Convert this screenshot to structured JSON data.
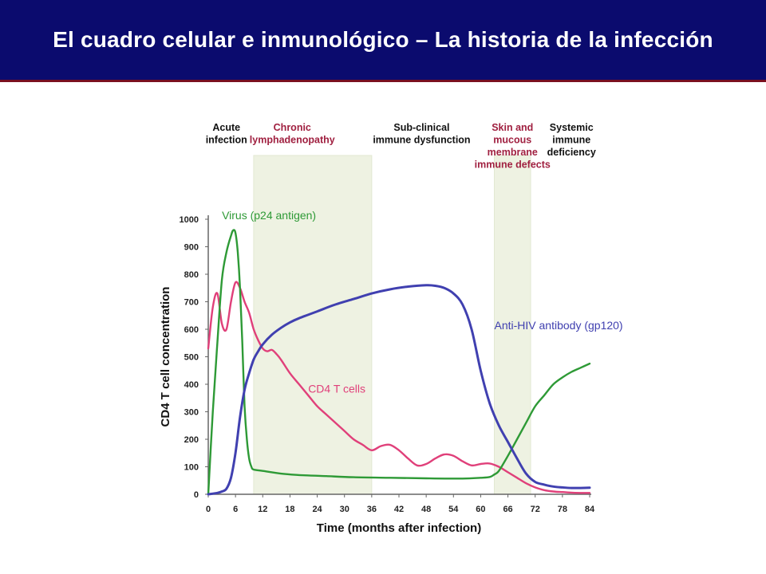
{
  "title": "El cuadro celular e inmunológico – La historia de la infección",
  "chart_data": {
    "type": "line",
    "xlabel": "Time (months after infection)",
    "ylabel": "CD4 T cell concentration",
    "xlim": [
      0,
      84
    ],
    "ylim": [
      0,
      1000
    ],
    "xticks": [
      0,
      6,
      12,
      18,
      24,
      30,
      36,
      42,
      48,
      54,
      60,
      66,
      72,
      78,
      84
    ],
    "yticks": [
      0,
      100,
      200,
      300,
      400,
      500,
      600,
      700,
      800,
      900,
      1000
    ],
    "grid": false,
    "phases": [
      {
        "lines": [
          "Acute",
          "infection"
        ],
        "x": 4,
        "color": "#111111",
        "shaded": false
      },
      {
        "lines": [
          "Chronic",
          "lymphadenopathy"
        ],
        "x": 18.5,
        "color": "#a02040",
        "shaded": true,
        "range": [
          10,
          36
        ]
      },
      {
        "lines": [
          "Sub-clinical",
          "immune dysfunction"
        ],
        "x": 47,
        "color": "#111111",
        "shaded": false
      },
      {
        "lines": [
          "Skin and",
          "mucous",
          "membrane",
          "immune defects"
        ],
        "x": 67,
        "color": "#a02040",
        "shaded": true,
        "range": [
          63,
          71
        ]
      },
      {
        "lines": [
          "Systemic",
          "immune",
          "deficiency"
        ],
        "x": 80,
        "color": "#111111",
        "shaded": false
      }
    ],
    "series": [
      {
        "name": "Virus (p24 antigen)",
        "color": "#2e9a36",
        "label_at": [
          3,
          1000
        ],
        "x": [
          0,
          1,
          2,
          3,
          4,
          5,
          5.5,
          6,
          6.5,
          7,
          7.5,
          8,
          8.5,
          9,
          9.5,
          10,
          12,
          16,
          20,
          26,
          32,
          40,
          48,
          56,
          60,
          62,
          63,
          64,
          66,
          68,
          70,
          72,
          74,
          76,
          78,
          80,
          82,
          84
        ],
        "values": [
          0,
          300,
          550,
          780,
          880,
          940,
          960,
          950,
          880,
          750,
          550,
          320,
          200,
          130,
          100,
          90,
          85,
          75,
          70,
          66,
          62,
          60,
          58,
          57,
          60,
          63,
          72,
          85,
          140,
          200,
          260,
          320,
          360,
          400,
          425,
          445,
          460,
          475
        ]
      },
      {
        "name": "CD4 T cells",
        "color": "#e0407a",
        "label_at": [
          22,
          370
        ],
        "x": [
          0,
          1,
          2,
          3,
          4,
          5,
          6,
          7,
          8,
          9,
          10,
          11,
          12,
          13,
          14,
          15,
          16,
          18,
          20,
          22,
          24,
          26,
          28,
          30,
          32,
          34,
          36,
          38,
          40,
          42,
          44,
          46,
          48,
          50,
          52,
          54,
          56,
          58,
          60,
          62,
          64,
          66,
          68,
          70,
          72,
          74,
          76,
          78,
          80,
          82,
          84
        ],
        "values": [
          530,
          680,
          730,
          620,
          600,
          700,
          770,
          750,
          700,
          660,
          600,
          560,
          530,
          520,
          525,
          510,
          490,
          440,
          400,
          360,
          320,
          290,
          260,
          230,
          200,
          180,
          160,
          175,
          180,
          160,
          130,
          105,
          110,
          130,
          145,
          140,
          120,
          105,
          110,
          112,
          100,
          80,
          60,
          40,
          25,
          15,
          10,
          8,
          6,
          5,
          5
        ]
      },
      {
        "name": "Anti-HIV antibody (gp120)",
        "color": "#4040b0",
        "label_at": [
          63,
          600
        ],
        "x": [
          0,
          2,
          3,
          4,
          5,
          6,
          7,
          8,
          9,
          10,
          11,
          12,
          14,
          16,
          18,
          20,
          24,
          28,
          32,
          36,
          40,
          44,
          48,
          50,
          52,
          54,
          56,
          58,
          60,
          62,
          64,
          66,
          68,
          70,
          72,
          74,
          76,
          78,
          80,
          82,
          84
        ],
        "values": [
          0,
          5,
          10,
          20,
          60,
          150,
          280,
          380,
          440,
          490,
          520,
          545,
          580,
          605,
          625,
          640,
          665,
          690,
          710,
          730,
          745,
          755,
          760,
          758,
          750,
          730,
          690,
          600,
          450,
          330,
          250,
          190,
          130,
          75,
          45,
          35,
          28,
          25,
          23,
          23,
          24
        ]
      }
    ]
  }
}
